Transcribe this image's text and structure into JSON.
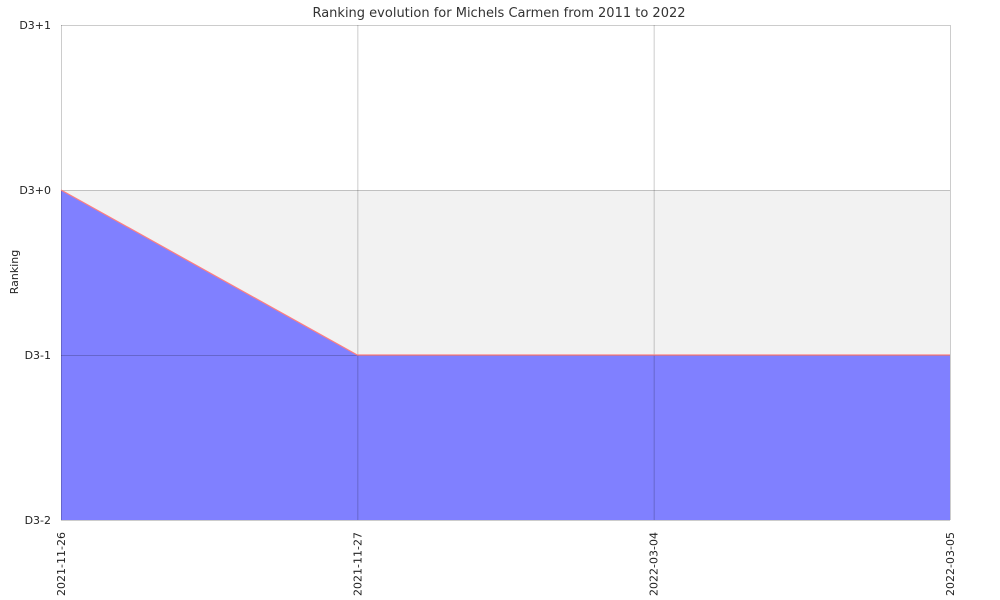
{
  "chart_data": {
    "type": "area",
    "title": "Ranking evolution for Michels Carmen from 2011 to 2022",
    "xlabel": "",
    "ylabel": "Ranking",
    "x": [
      "2021-11-26",
      "2021-11-27",
      "2022-03-04",
      "2022-03-05"
    ],
    "y_categories": [
      "D3-2",
      "D3-1",
      "D3+0",
      "D3+1"
    ],
    "series": [
      {
        "values": [
          "D3+0",
          "D3-1",
          "D3-1",
          "D3-1"
        ]
      }
    ],
    "bands": [
      {
        "from": "D3+1",
        "to": "D3+0",
        "color": "#ffffff"
      },
      {
        "from": "D3+0",
        "to": "D3-1",
        "color": "#f2f2f2"
      },
      {
        "from": "D3-1",
        "to": "D3-2",
        "color": "#ffffff"
      }
    ],
    "grid": true,
    "colors": {
      "area_fill": "#8080ff",
      "line": "#ff7f7f",
      "grid": "#cccccc"
    }
  }
}
